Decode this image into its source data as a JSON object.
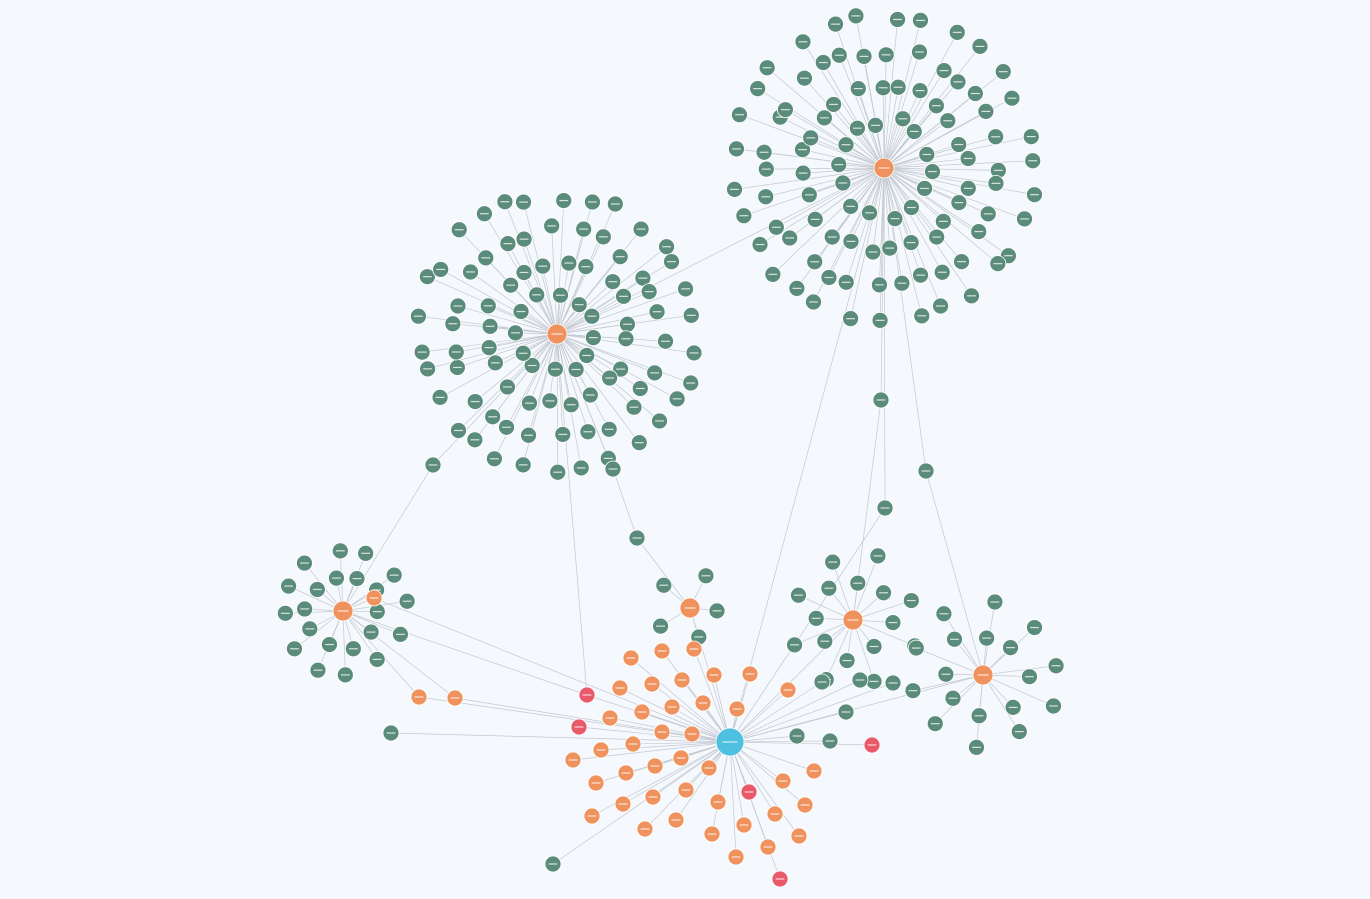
{
  "graph": {
    "colors": {
      "background": "#f5f9fd",
      "property_node": "#5b8c7b",
      "entity_node": "#f0925e",
      "alert_node": "#e85a6a",
      "root_node": "#4ec0e0",
      "edge": "#c3c8d0",
      "node_label": "#ffffff"
    },
    "hubs": [
      {
        "id": "hub-a",
        "kind": "entity",
        "label": "ryu",
        "leaf_count": 150
      },
      {
        "id": "hub-b",
        "kind": "entity",
        "label": "ryu",
        "leaf_count": 95
      },
      {
        "id": "hub-c",
        "kind": "entity",
        "label": "ryu",
        "leaf_count": 20
      },
      {
        "id": "hub-d",
        "kind": "entity",
        "label": "ryu",
        "leaf_count": 12
      },
      {
        "id": "hub-e",
        "kind": "entity",
        "label": "ryu",
        "leaf_count": 14
      },
      {
        "id": "hub-f",
        "kind": "entity",
        "label": "ryu",
        "leaf_count": 5
      }
    ],
    "root": {
      "id": "root",
      "kind": "root",
      "label": "ryu"
    },
    "cluster_counts": {
      "orange_satellites": 52,
      "red_alerts": 6
    },
    "legend": null
  }
}
